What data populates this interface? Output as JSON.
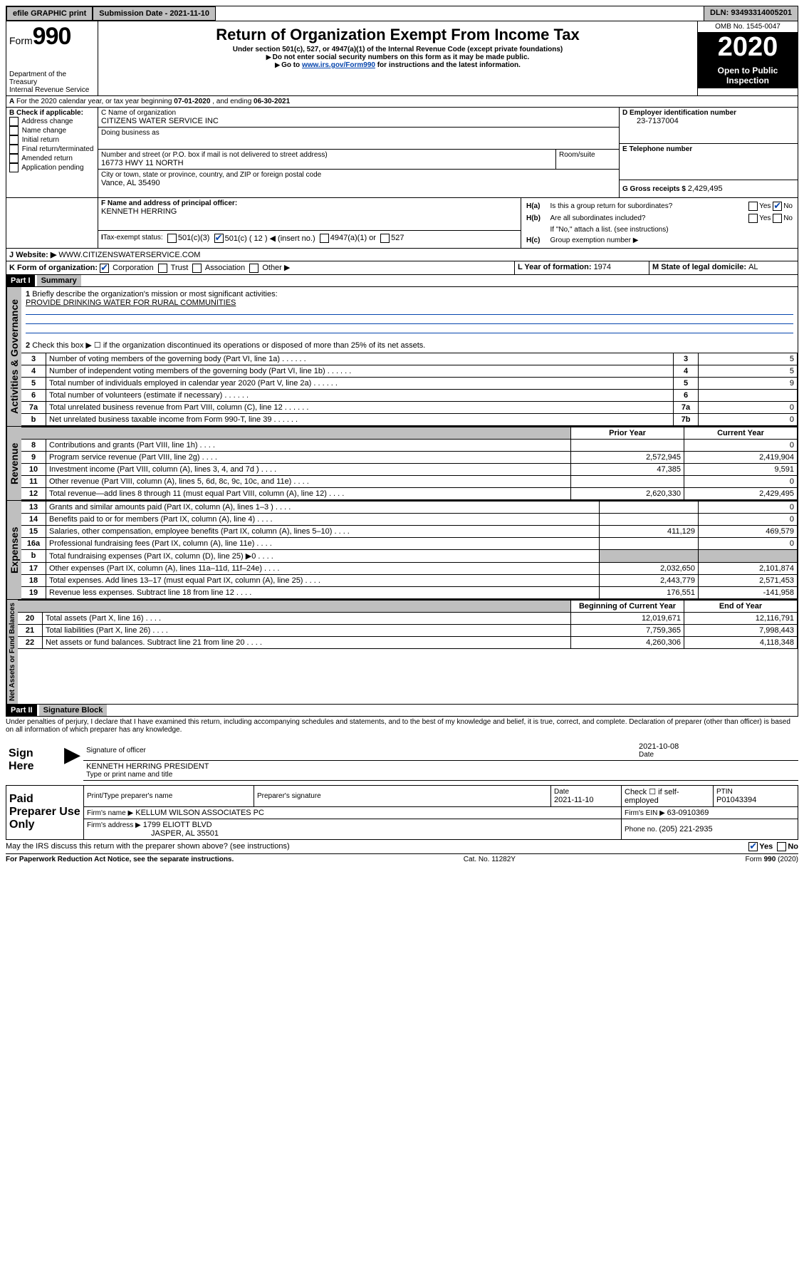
{
  "topbar": {
    "efile": "efile GRAPHIC print",
    "submission": "Submission Date - 2021-11-10",
    "dln": "DLN: 93493314005201"
  },
  "header": {
    "form_label": "Form",
    "form_number": "990",
    "dept": "Department of the Treasury",
    "irs": "Internal Revenue Service",
    "title": "Return of Organization Exempt From Income Tax",
    "subtitle": "Under section 501(c), 527, or 4947(a)(1) of the Internal Revenue Code (except private foundations)",
    "note1": "Do not enter social security numbers on this form as it may be made public.",
    "note2_pre": "Go to ",
    "note2_link": "www.irs.gov/Form990",
    "note2_post": " for instructions and the latest information.",
    "omb": "OMB No. 1545-0047",
    "year": "2020",
    "open": "Open to Public Inspection"
  },
  "period": {
    "label_a": "For the 2020 calendar year, or tax year beginning ",
    "begin": "07-01-2020",
    "mid": " , and ending ",
    "end": "06-30-2021"
  },
  "blockB": {
    "label": "B Check if applicable:",
    "opts": [
      "Address change",
      "Name change",
      "Initial return",
      "Final return/terminated",
      "Amended return",
      "Application pending"
    ]
  },
  "blockC": {
    "name_label": "C Name of organization",
    "name": "CITIZENS WATER SERVICE INC",
    "dba_label": "Doing business as",
    "addr_label": "Number and street (or P.O. box if mail is not delivered to street address)",
    "room_label": "Room/suite",
    "addr": "16773 HWY 11 NORTH",
    "city_label": "City or town, state or province, country, and ZIP or foreign postal code",
    "city": "Vance, AL  35490"
  },
  "blockD": {
    "label": "D Employer identification number",
    "ein": "23-7137004"
  },
  "blockE": {
    "label": "E Telephone number"
  },
  "blockG": {
    "label": "G Gross receipts $ ",
    "value": "2,429,495"
  },
  "blockF": {
    "label": "F Name and address of principal officer:",
    "name": "KENNETH HERRING"
  },
  "blockH": {
    "a": "Is this a group return for subordinates?",
    "b": "Are all subordinates included?",
    "b_note": "If \"No,\" attach a list. (see instructions)",
    "c": "Group exemption number ▶",
    "yes": "Yes",
    "no": "No"
  },
  "taxExempt": {
    "label": "Tax-exempt status:",
    "c3": "501(c)(3)",
    "c": "501(c) ( 12 ) ◀ (insert no.)",
    "a1": "4947(a)(1) or",
    "s527": "527"
  },
  "website": {
    "label": "Website: ▶",
    "value": "WWW.CITIZENSWATERSERVICE.COM"
  },
  "lineK": {
    "label": "K Form of organization:",
    "corp": "Corporation",
    "trust": "Trust",
    "assoc": "Association",
    "other": "Other ▶"
  },
  "lineL": {
    "label": "L Year of formation: ",
    "val": "1974"
  },
  "lineM": {
    "label": "M State of legal domicile: ",
    "val": "AL"
  },
  "part1": {
    "band": "Part I",
    "title": "Summary"
  },
  "summary": {
    "q1": "Briefly describe the organization's mission or most significant activities:",
    "mission": "PROVIDE DRINKING WATER FOR RURAL COMMUNITIES",
    "q2": "Check this box ▶ ☐ if the organization discontinued its operations or disposed of more than 25% of its net assets.",
    "rows_ag": [
      {
        "n": "3",
        "label": "Number of voting members of the governing body (Part VI, line 1a)",
        "col": "3",
        "val": "5"
      },
      {
        "n": "4",
        "label": "Number of independent voting members of the governing body (Part VI, line 1b)",
        "col": "4",
        "val": "5"
      },
      {
        "n": "5",
        "label": "Total number of individuals employed in calendar year 2020 (Part V, line 2a)",
        "col": "5",
        "val": "9"
      },
      {
        "n": "6",
        "label": "Total number of volunteers (estimate if necessary)",
        "col": "6",
        "val": ""
      },
      {
        "n": "7a",
        "label": "Total unrelated business revenue from Part VIII, column (C), line 12",
        "col": "7a",
        "val": "0"
      },
      {
        "n": "b",
        "label": "Net unrelated business taxable income from Form 990-T, line 39",
        "col": "7b",
        "val": "0"
      }
    ],
    "hdr_prior": "Prior Year",
    "hdr_current": "Current Year",
    "rev_rows": [
      {
        "n": "8",
        "label": "Contributions and grants (Part VIII, line 1h)",
        "prior": "",
        "cur": "0"
      },
      {
        "n": "9",
        "label": "Program service revenue (Part VIII, line 2g)",
        "prior": "2,572,945",
        "cur": "2,419,904"
      },
      {
        "n": "10",
        "label": "Investment income (Part VIII, column (A), lines 3, 4, and 7d )",
        "prior": "47,385",
        "cur": "9,591"
      },
      {
        "n": "11",
        "label": "Other revenue (Part VIII, column (A), lines 5, 6d, 8c, 9c, 10c, and 11e)",
        "prior": "",
        "cur": "0"
      },
      {
        "n": "12",
        "label": "Total revenue—add lines 8 through 11 (must equal Part VIII, column (A), line 12)",
        "prior": "2,620,330",
        "cur": "2,429,495"
      }
    ],
    "exp_rows": [
      {
        "n": "13",
        "label": "Grants and similar amounts paid (Part IX, column (A), lines 1–3 )",
        "prior": "",
        "cur": "0"
      },
      {
        "n": "14",
        "label": "Benefits paid to or for members (Part IX, column (A), line 4)",
        "prior": "",
        "cur": "0"
      },
      {
        "n": "15",
        "label": "Salaries, other compensation, employee benefits (Part IX, column (A), lines 5–10)",
        "prior": "411,129",
        "cur": "469,579"
      },
      {
        "n": "16a",
        "label": "Professional fundraising fees (Part IX, column (A), line 11e)",
        "prior": "",
        "cur": "0"
      },
      {
        "n": "b",
        "label": "Total fundraising expenses (Part IX, column (D), line 25) ▶0",
        "prior": "SHADE",
        "cur": "SHADE"
      },
      {
        "n": "17",
        "label": "Other expenses (Part IX, column (A), lines 11a–11d, 11f–24e)",
        "prior": "2,032,650",
        "cur": "2,101,874"
      },
      {
        "n": "18",
        "label": "Total expenses. Add lines 13–17 (must equal Part IX, column (A), line 25)",
        "prior": "2,443,779",
        "cur": "2,571,453"
      },
      {
        "n": "19",
        "label": "Revenue less expenses. Subtract line 18 from line 12",
        "prior": "176,551",
        "cur": "-141,958"
      }
    ],
    "hdr_boy": "Beginning of Current Year",
    "hdr_eoy": "End of Year",
    "na_rows": [
      {
        "n": "20",
        "label": "Total assets (Part X, line 16)",
        "prior": "12,019,671",
        "cur": "12,116,791"
      },
      {
        "n": "21",
        "label": "Total liabilities (Part X, line 26)",
        "prior": "7,759,365",
        "cur": "7,998,443"
      },
      {
        "n": "22",
        "label": "Net assets or fund balances. Subtract line 21 from line 20",
        "prior": "4,260,306",
        "cur": "4,118,348"
      }
    ]
  },
  "vlabels": {
    "ag": "Activities & Governance",
    "rev": "Revenue",
    "exp": "Expenses",
    "na": "Net Assets or Fund Balances"
  },
  "part2": {
    "band": "Part II",
    "title": "Signature Block"
  },
  "sig": {
    "perjury": "Under penalties of perjury, I declare that I have examined this return, including accompanying schedules and statements, and to the best of my knowledge and belief, it is true, correct, and complete. Declaration of preparer (other than officer) is based on all information of which preparer has any knowledge.",
    "sign_here": "Sign Here",
    "sig_officer": "Signature of officer",
    "date": "Date",
    "date_val": "2021-10-08",
    "name_title": "KENNETH HERRING  PRESIDENT",
    "type_name": "Type or print name and title",
    "paid": "Paid Preparer Use Only",
    "prep_name_lbl": "Print/Type preparer's name",
    "prep_sig_lbl": "Preparer's signature",
    "prep_date_lbl": "Date",
    "prep_date": "2021-11-10",
    "self_emp": "Check ☐ if self-employed",
    "ptin_lbl": "PTIN",
    "ptin": "P01043394",
    "firm_name_lbl": "Firm's name    ▶",
    "firm_name": "KELLUM WILSON ASSOCIATES PC",
    "firm_ein_lbl": "Firm's EIN ▶ ",
    "firm_ein": "63-0910369",
    "firm_addr_lbl": "Firm's address ▶",
    "firm_addr1": "1799 ELIOTT BLVD",
    "firm_addr2": "JASPER, AL  35501",
    "phone_lbl": "Phone no. ",
    "phone": "(205) 221-2935",
    "discuss": "May the IRS discuss this return with the preparer shown above? (see instructions)"
  },
  "footer": {
    "paperwork": "For Paperwork Reduction Act Notice, see the separate instructions.",
    "cat": "Cat. No. 11282Y",
    "form": "Form 990 (2020)"
  }
}
